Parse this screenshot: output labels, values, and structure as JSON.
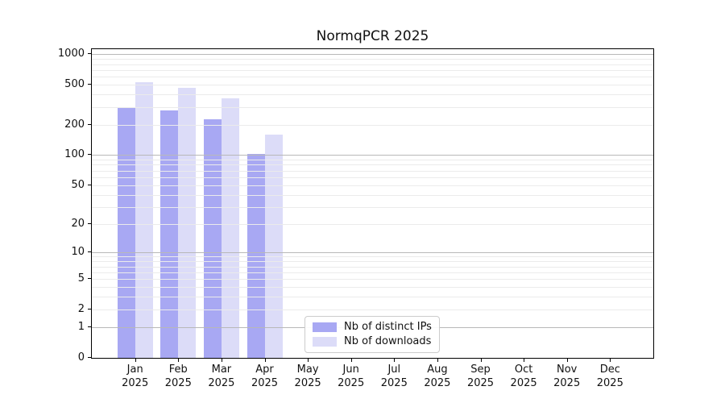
{
  "chart_data": {
    "type": "bar",
    "title": "NormqPCR 2025",
    "categories": [
      "Jan",
      "Feb",
      "Mar",
      "Apr",
      "May",
      "Jun",
      "Jul",
      "Aug",
      "Sep",
      "Oct",
      "Nov",
      "Dec"
    ],
    "year_label": "2025",
    "series": [
      {
        "name": "Nb of distinct IPs",
        "color": "#a8a8f3",
        "values": [
          296,
          280,
          226,
          103,
          null,
          null,
          null,
          null,
          null,
          null,
          null,
          null
        ]
      },
      {
        "name": "Nb of downloads",
        "color": "#dcdcf8",
        "values": [
          525,
          465,
          369,
          159,
          null,
          null,
          null,
          null,
          null,
          null,
          null,
          null
        ]
      }
    ],
    "yscale": "log1p",
    "ylim": [
      0,
      1124
    ],
    "yticks": [
      0,
      1,
      2,
      5,
      10,
      20,
      50,
      100,
      200,
      500,
      1000
    ],
    "gridlines": {
      "major": [
        1,
        10,
        100,
        1000
      ],
      "minor": [
        2,
        3,
        4,
        5,
        6,
        7,
        8,
        9,
        20,
        30,
        40,
        50,
        60,
        70,
        80,
        90,
        200,
        300,
        400,
        500,
        600,
        700,
        800,
        900
      ]
    },
    "legend": {
      "position": "inside-bottom-center",
      "labels": [
        "Nb of distinct IPs",
        "Nb of downloads"
      ]
    },
    "colors": {
      "major_grid": "#b8b8b8",
      "minor_grid": "#ebebeb",
      "axis": "#000000",
      "text": "#111111",
      "background": "#ffffff"
    }
  }
}
